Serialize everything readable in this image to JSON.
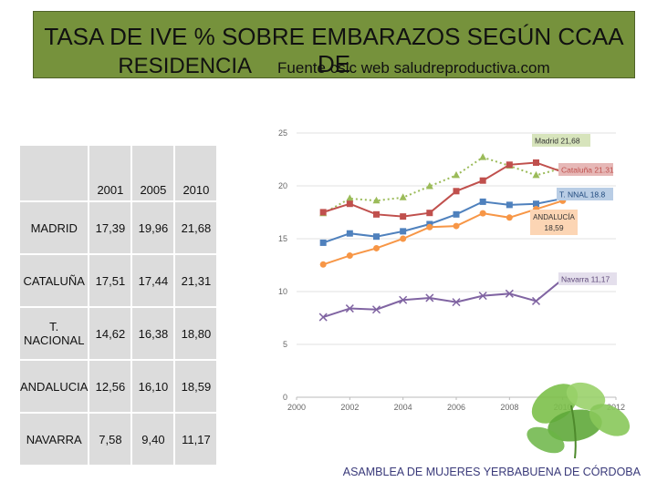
{
  "header": {
    "title_line1": "TASA DE IVE % SOBRE EMBARAZOS SEGÚN CCAA DE",
    "title_line2": "RESIDENCIA",
    "source": "Fuente csic web saludreproductiva.com"
  },
  "table": {
    "years": [
      "2001",
      "2005",
      "2010"
    ],
    "rows": [
      {
        "label": "MADRID",
        "values": [
          "17,39",
          "19,96",
          "21,68"
        ]
      },
      {
        "label": "CATALUÑA",
        "values": [
          "17,51",
          "17,44",
          "21,31"
        ]
      },
      {
        "label": "T. NACIONAL",
        "values": [
          "14,62",
          "16,38",
          "18,80"
        ]
      },
      {
        "label": "ANDALUCIA",
        "values": [
          "12,56",
          "16,10",
          "18,59"
        ]
      },
      {
        "label": "NAVARRA",
        "values": [
          "7,58",
          "9,40",
          "11,17"
        ]
      }
    ]
  },
  "chart_data": {
    "type": "line",
    "x": [
      2001,
      2002,
      2003,
      2004,
      2005,
      2006,
      2007,
      2008,
      2009,
      2010
    ],
    "xlim": [
      2000,
      2012
    ],
    "ylim": [
      0,
      25
    ],
    "xticks": [
      "2000",
      "2002",
      "2004",
      "2006",
      "2008",
      "2010",
      "2012"
    ],
    "yticks": [
      "0",
      "5",
      "10",
      "15",
      "20",
      "25"
    ],
    "grid": "horizontal",
    "series": [
      {
        "label": "Madrid 21,68",
        "color": "#9bbb59",
        "marker": "triangle",
        "dash": "dotted",
        "values": [
          17.39,
          18.8,
          18.6,
          18.9,
          19.96,
          21.0,
          22.7,
          21.9,
          21.0,
          21.68
        ]
      },
      {
        "label": "Cataluña 21.31",
        "color": "#c0504d",
        "marker": "square",
        "dash": "solid",
        "values": [
          17.51,
          18.3,
          17.3,
          17.1,
          17.44,
          19.5,
          20.5,
          22.0,
          22.2,
          21.31
        ]
      },
      {
        "label": "T. NNAL 18.8",
        "color": "#4f81bd",
        "marker": "square",
        "dash": "solid",
        "values": [
          14.62,
          15.5,
          15.2,
          15.7,
          16.38,
          17.3,
          18.5,
          18.2,
          18.3,
          18.8
        ]
      },
      {
        "label": "ANDALUCÍA 18,59",
        "color": "#f79646",
        "marker": "circle",
        "dash": "solid",
        "values": [
          12.56,
          13.4,
          14.1,
          15.0,
          16.1,
          16.2,
          17.4,
          17.0,
          17.8,
          18.59
        ]
      },
      {
        "label": "Navarra 11,17",
        "color": "#8064a2",
        "marker": "cross",
        "dash": "solid",
        "values": [
          7.58,
          8.4,
          8.3,
          9.2,
          9.4,
          9.0,
          9.6,
          9.8,
          9.1,
          11.17
        ]
      }
    ]
  },
  "footer": {
    "credit": "ASAMBLEA DE MUJERES YERBABUENA DE CÓRDOBA"
  }
}
